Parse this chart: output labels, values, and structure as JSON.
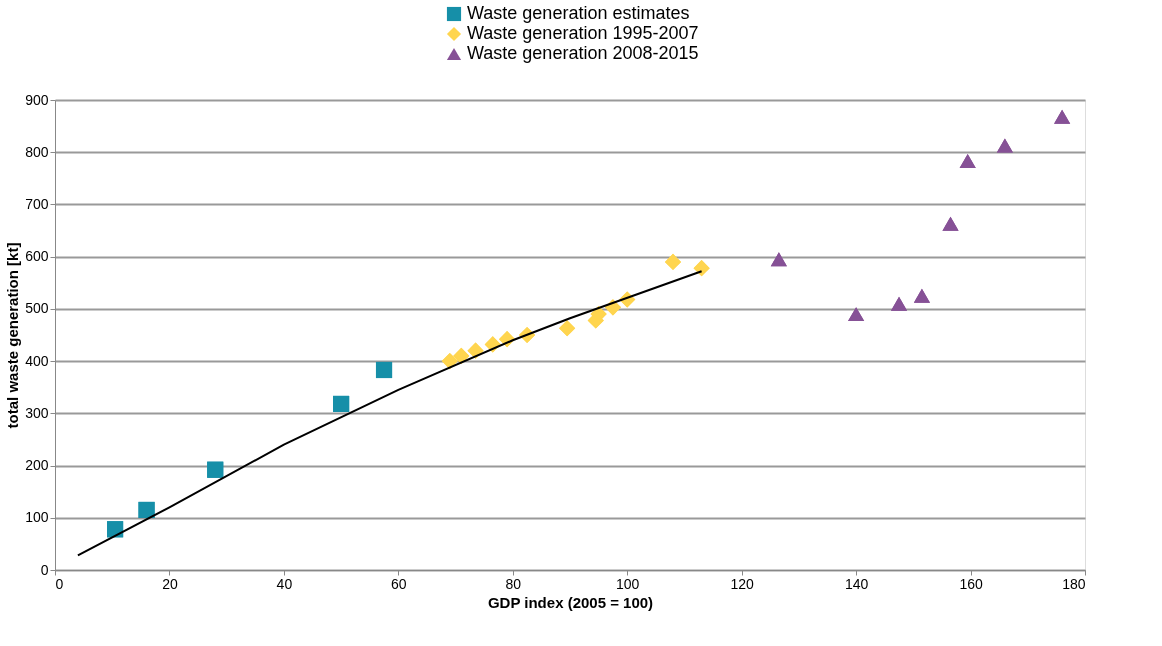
{
  "chart_data": {
    "type": "scatter",
    "xlabel": "GDP index (2005 = 100)",
    "ylabel": "total waste generation [kt]",
    "xlim": [
      0,
      180
    ],
    "xticks": [
      0,
      20,
      40,
      60,
      80,
      100,
      120,
      140,
      160,
      180
    ],
    "ylim": [
      0,
      900
    ],
    "yticks": [
      0,
      100,
      200,
      300,
      400,
      500,
      600,
      700,
      800,
      900
    ],
    "grid": "y",
    "legend": "top",
    "series": [
      {
        "name": "Waste generation estimates",
        "color": "#168fa8",
        "marker": "square",
        "x": [
          10.5,
          16,
          28,
          50,
          57.5
        ],
        "values": [
          78,
          115,
          192,
          318,
          383
        ]
      },
      {
        "name": "Waste generation 1995-2007",
        "color": "#ffd54f",
        "marker": "diamond",
        "x": [
          69,
          71,
          73.5,
          76.5,
          79,
          82.5,
          89.5,
          94.5,
          95,
          97.5,
          100,
          108,
          113
        ],
        "values": [
          400,
          410,
          420,
          432,
          442,
          450,
          463,
          478,
          490,
          503,
          518,
          590,
          578
        ]
      },
      {
        "name": "Waste generation 2008-2015",
        "color": "#865196",
        "marker": "triangle",
        "x": [
          126.5,
          140,
          147.5,
          151.5,
          156.5,
          159.5,
          166,
          176
        ],
        "values": [
          595,
          490,
          510,
          525,
          663,
          783,
          813,
          868
        ]
      },
      {
        "type": "line",
        "color": "#000000",
        "marker": "none",
        "line_style": "solid",
        "x": [
          4,
          20,
          40,
          60,
          80,
          90,
          113
        ],
        "values": [
          28,
          120,
          240,
          345,
          440,
          482,
          572
        ]
      }
    ]
  }
}
